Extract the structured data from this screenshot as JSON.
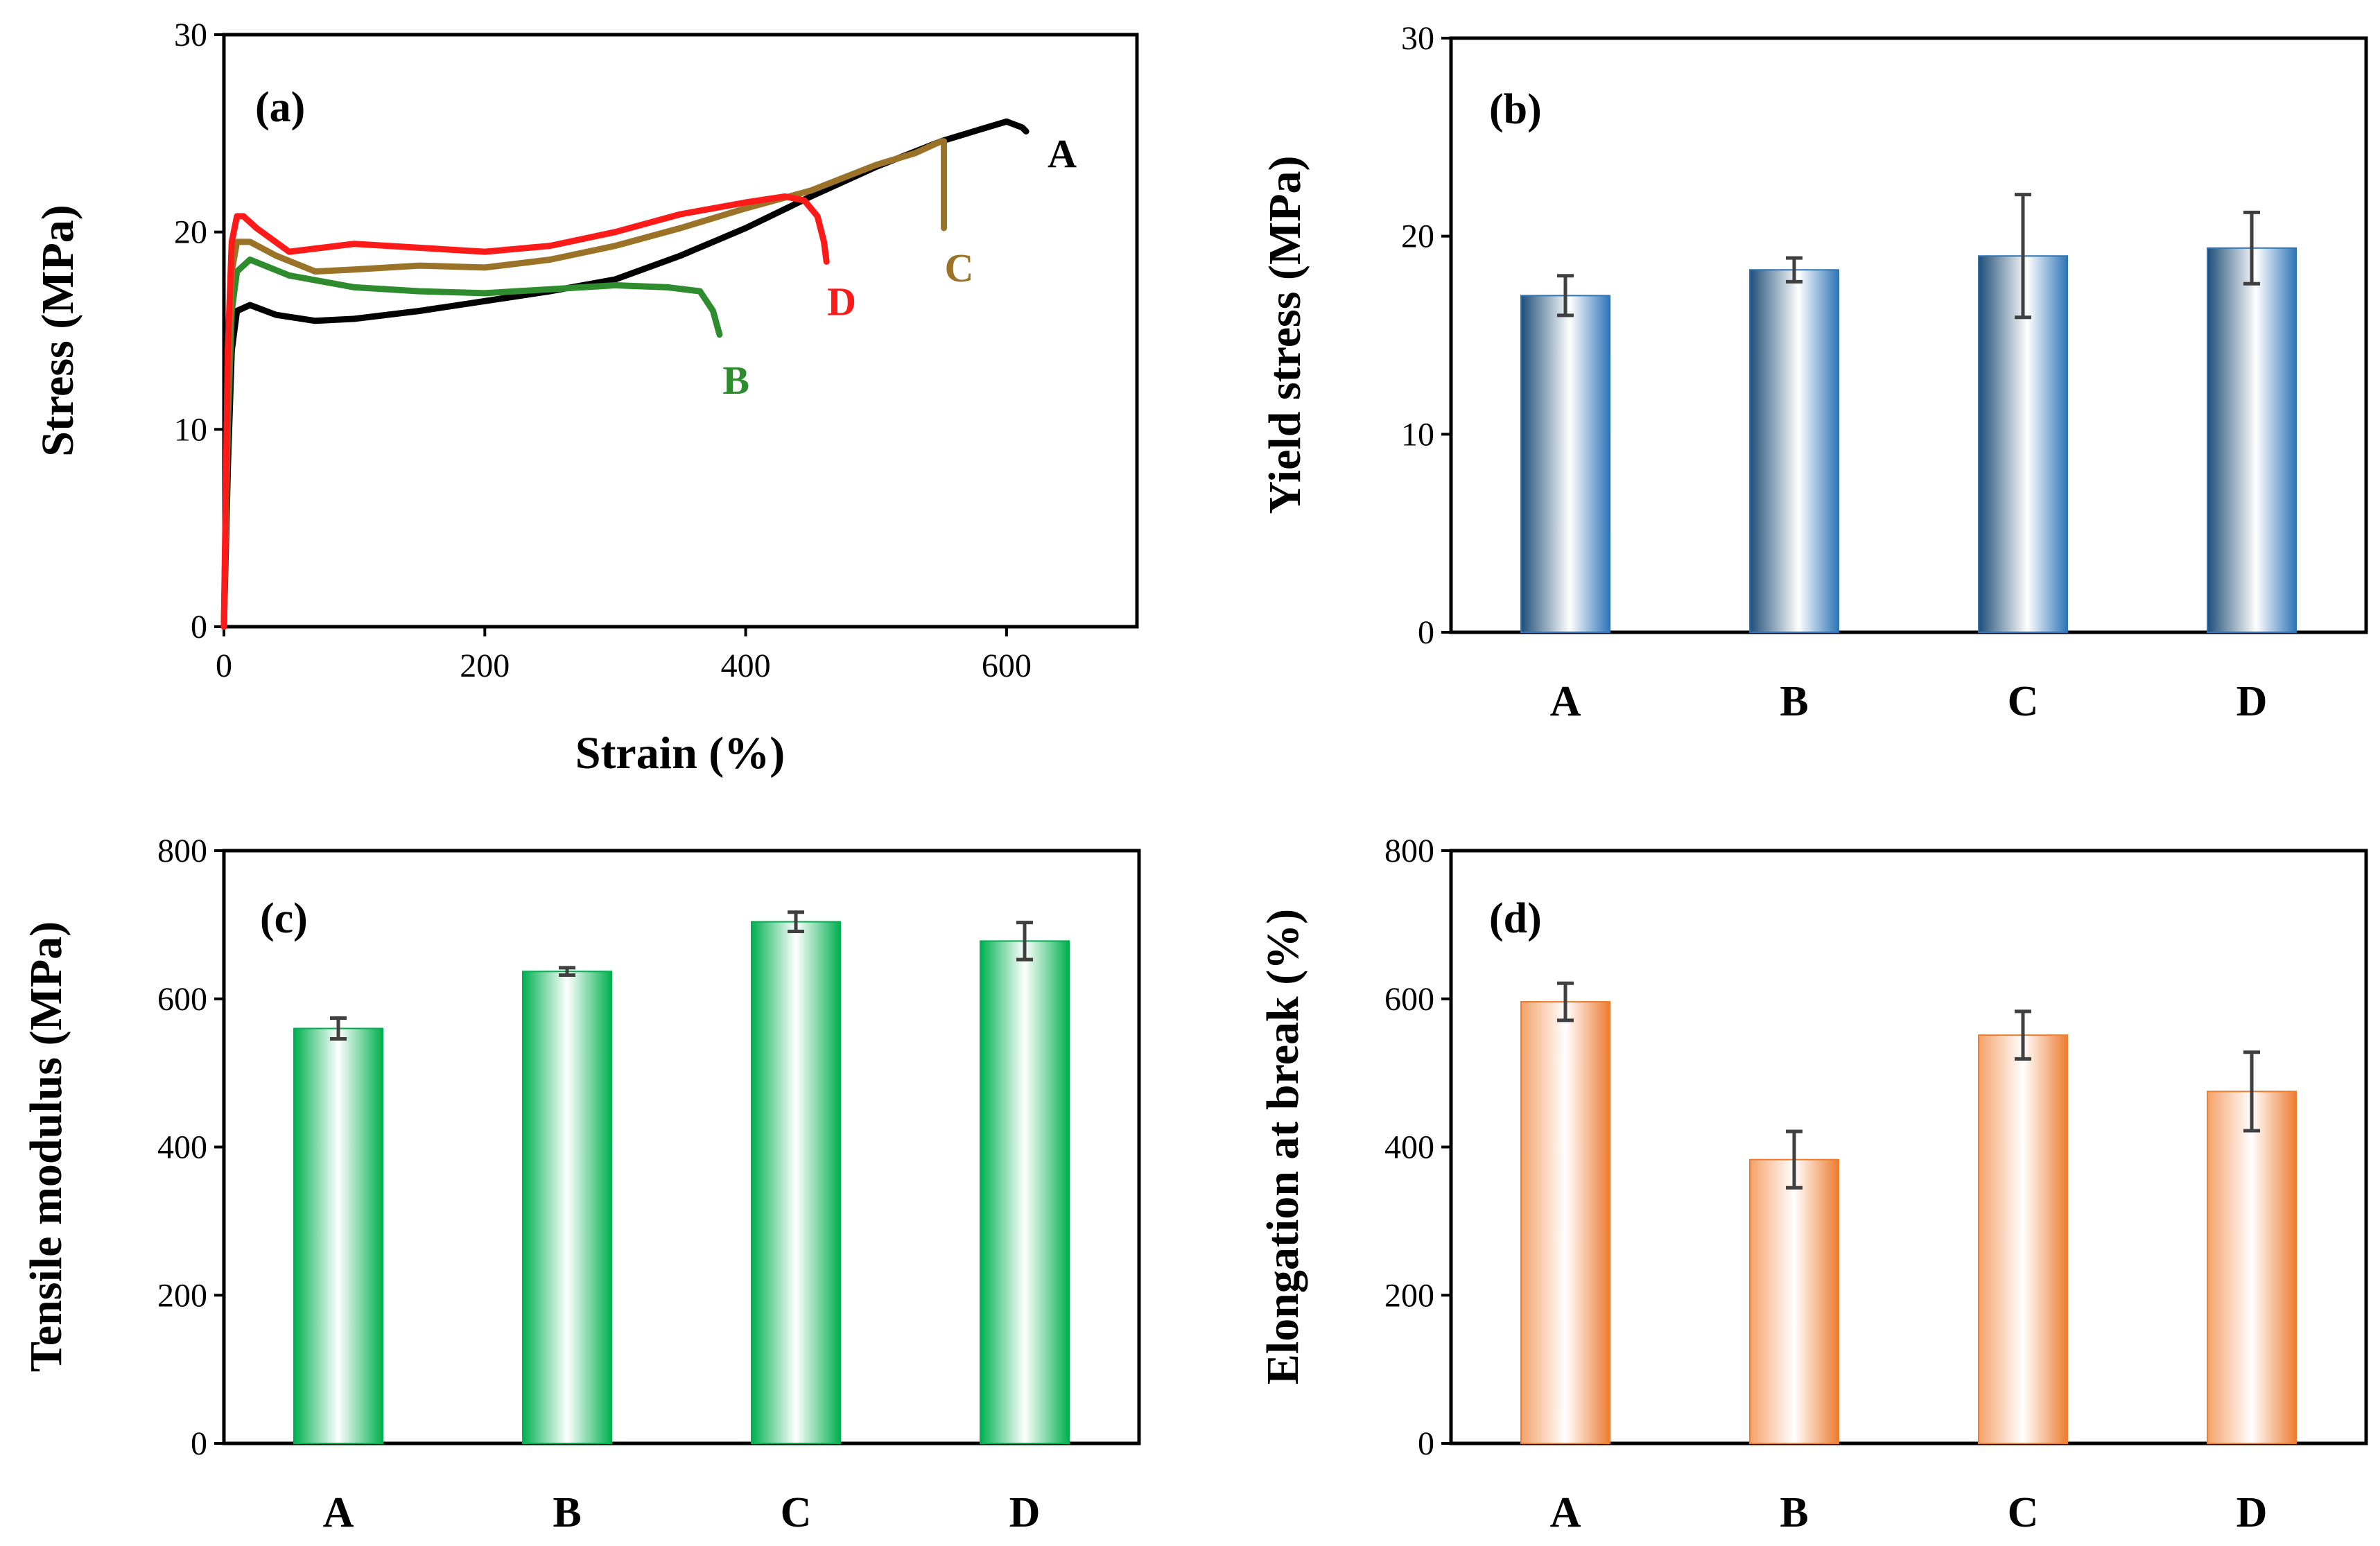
{
  "chart_data": [
    {
      "panel": "a",
      "type": "line",
      "panel_label": "(a)",
      "xlabel": "Strain (%)",
      "ylabel": "Stress (MPa)",
      "xlim": [
        0,
        700
      ],
      "ylim": [
        0,
        30
      ],
      "xticks": [
        "0",
        "200",
        "400",
        "600"
      ],
      "yticks": [
        "0",
        "10",
        "20",
        "30"
      ],
      "series": [
        {
          "name": "A",
          "color": "#000000",
          "x": [
            0,
            3,
            6,
            10,
            20,
            40,
            70,
            100,
            150,
            200,
            250,
            300,
            350,
            400,
            450,
            500,
            550,
            580,
            600,
            612,
            615
          ],
          "y": [
            0,
            8,
            14,
            16,
            16.3,
            15.8,
            15.5,
            15.6,
            16,
            16.5,
            17,
            17.6,
            18.8,
            20.2,
            21.8,
            23.3,
            24.6,
            25.2,
            25.6,
            25.3,
            25.1
          ]
        },
        {
          "name": "B",
          "color": "#2e8b2e",
          "x": [
            0,
            3,
            6,
            10,
            20,
            50,
            100,
            150,
            200,
            250,
            300,
            340,
            365,
            375,
            380
          ],
          "y": [
            0,
            10,
            16,
            18,
            18.6,
            17.8,
            17.2,
            17.0,
            16.9,
            17.1,
            17.3,
            17.2,
            17.0,
            16.0,
            14.8
          ]
        },
        {
          "name": "C",
          "color": "#9a7328",
          "x": [
            0,
            3,
            6,
            10,
            20,
            40,
            70,
            100,
            150,
            200,
            250,
            300,
            350,
            400,
            450,
            500,
            530,
            550,
            552,
            552
          ],
          "y": [
            0,
            12,
            18,
            19.5,
            19.5,
            18.8,
            18.0,
            18.1,
            18.3,
            18.2,
            18.6,
            19.3,
            20.2,
            21.2,
            22.1,
            23.4,
            24.0,
            24.6,
            24.6,
            20.2
          ]
        },
        {
          "name": "D",
          "color": "#ff1a1a",
          "x": [
            0,
            3,
            6,
            10,
            15,
            25,
            50,
            100,
            150,
            200,
            250,
            300,
            350,
            400,
            430,
            445,
            455,
            460,
            462
          ],
          "y": [
            0,
            14,
            19.5,
            20.8,
            20.8,
            20.2,
            19.0,
            19.4,
            19.2,
            19.0,
            19.3,
            20.0,
            20.9,
            21.5,
            21.8,
            21.6,
            20.8,
            19.5,
            18.5
          ]
        }
      ],
      "curve_labels": [
        "A",
        "B",
        "C",
        "D"
      ]
    },
    {
      "panel": "b",
      "type": "bar",
      "panel_label": "(b)",
      "ylabel": "Yield stress (MPa)",
      "categories": [
        "A",
        "B",
        "C",
        "D"
      ],
      "values": [
        17.0,
        18.3,
        19.0,
        19.4
      ],
      "errors": [
        1.0,
        0.6,
        3.1,
        1.8
      ],
      "ylim": [
        0,
        30
      ],
      "yticks": [
        "0",
        "10",
        "20",
        "30"
      ],
      "colors": {
        "dark": "#1f4e79",
        "light": "#ffffff",
        "edge": "#2e75b6"
      }
    },
    {
      "panel": "c",
      "type": "bar",
      "panel_label": "(c)",
      "ylabel": "Tensile modulus (MPa)",
      "categories": [
        "A",
        "B",
        "C",
        "D"
      ],
      "values": [
        560,
        637,
        704,
        678
      ],
      "errors": [
        14,
        5,
        13,
        25
      ],
      "ylim": [
        0,
        800
      ],
      "yticks": [
        "0",
        "200",
        "400",
        "600",
        "800"
      ],
      "colors": {
        "dark": "#00b050",
        "light": "#ffffff",
        "edge": "#00b050"
      }
    },
    {
      "panel": "d",
      "type": "bar",
      "panel_label": "(d)",
      "ylabel": "Elongation at break (%)",
      "categories": [
        "A",
        "B",
        "C",
        "D"
      ],
      "values": [
        596,
        383,
        551,
        475
      ],
      "errors": [
        25,
        38,
        32,
        53
      ],
      "ylim": [
        0,
        800
      ],
      "yticks": [
        "0",
        "200",
        "400",
        "600",
        "800"
      ],
      "colors": {
        "dark": "#f4a26a",
        "light": "#ffffff",
        "edge": "#ed7d31"
      }
    }
  ]
}
